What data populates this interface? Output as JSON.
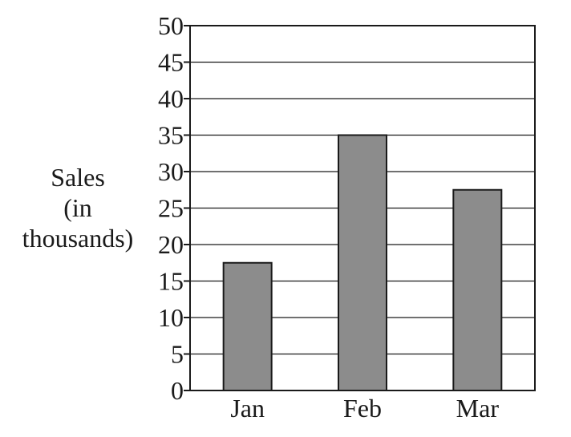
{
  "chart_data": {
    "type": "bar",
    "title": "",
    "xlabel": "",
    "ylabel": [
      "Sales",
      "(in",
      "thousands)"
    ],
    "categories": [
      "Jan",
      "Feb",
      "Mar"
    ],
    "values": [
      17.5,
      35,
      27.5
    ],
    "ylim": [
      0,
      50
    ],
    "yticks": [
      "0",
      "5",
      "10",
      "15",
      "20",
      "25",
      "30",
      "35",
      "40",
      "45",
      "50"
    ],
    "grid": true,
    "legend": "none",
    "colors": {
      "bar_fill": "#8c8c8c",
      "bar_stroke": "#1a1a1a",
      "axis": "#1a1a1a",
      "grid": "#1a1a1a"
    }
  }
}
